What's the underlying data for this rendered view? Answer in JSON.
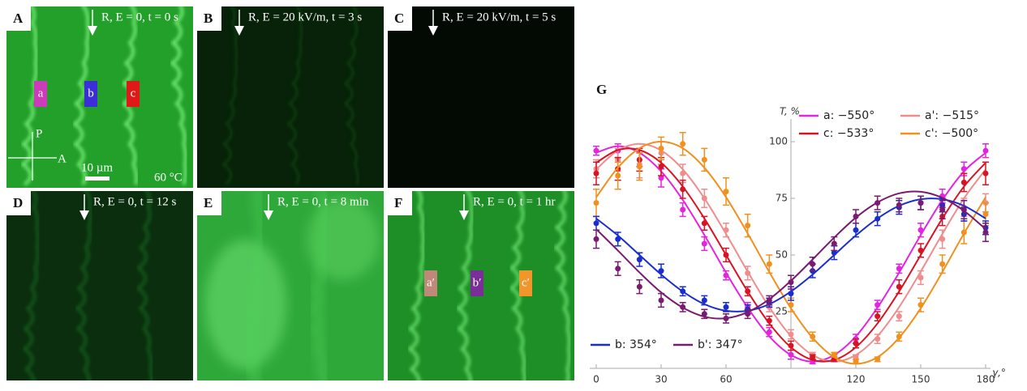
{
  "panels": [
    {
      "label": "A",
      "caption": "R, E = 0, t = 0 s",
      "markers": [
        {
          "text": "a",
          "color": "#cc3bb8"
        },
        {
          "text": "b",
          "color": "#3a2ed8"
        },
        {
          "text": "c",
          "color": "#e01818"
        }
      ],
      "polarizer": "P",
      "analyzer": "A",
      "scale": "10 µm",
      "temperature": "60 °C"
    },
    {
      "label": "B",
      "caption": "R, E = 20 kV/m, t = 3 s",
      "markers": []
    },
    {
      "label": "C",
      "caption": "R, E = 20 kV/m, t = 5 s",
      "markers": []
    },
    {
      "label": "D",
      "caption": "R, E = 0, t = 12 s",
      "markers": []
    },
    {
      "label": "E",
      "caption": "R, E = 0, t = 8 min",
      "markers": []
    },
    {
      "label": "F",
      "caption": "R, E = 0, t = 1 hr",
      "markers": [
        {
          "text": "a′",
          "color": "#c08878"
        },
        {
          "text": "b′",
          "color": "#7a2e98"
        },
        {
          "text": "c′",
          "color": "#f0962a"
        }
      ]
    }
  ],
  "chart_data": {
    "type": "line",
    "panel_label": "G",
    "ylabel": "T, %",
    "xlabel": "γ,°",
    "x": [
      0,
      10,
      20,
      30,
      40,
      50,
      60,
      70,
      80,
      90,
      100,
      110,
      120,
      130,
      140,
      150,
      160,
      170,
      180
    ],
    "xlim": [
      0,
      180
    ],
    "ylim": [
      0,
      110
    ],
    "xticks": [
      0,
      30,
      60,
      120,
      150,
      180
    ],
    "yticks": [
      25,
      50,
      75,
      100
    ],
    "series": [
      {
        "name": "a: −550°",
        "color": "#e424e0",
        "values": [
          96,
          96,
          92,
          84,
          70,
          55,
          41,
          27,
          16,
          6,
          3,
          5,
          13,
          28,
          44,
          61,
          76,
          88,
          96
        ],
        "errors": [
          2,
          3,
          3,
          4,
          3,
          3,
          2,
          2,
          2,
          2,
          1,
          1,
          2,
          2,
          2,
          3,
          3,
          3,
          3
        ],
        "fit": [
          95.1,
          98,
          95.1,
          86.9,
          74.3,
          58.8,
          42.2,
          26.8,
          14.1,
          5.9,
          3,
          5.9,
          14.1,
          26.8,
          42.2,
          58.8,
          74.3,
          86.9,
          95.1
        ]
      },
      {
        "name": "a': −515°",
        "color": "#f08c8c",
        "values": [
          88,
          92,
          90,
          95,
          86,
          75,
          61,
          42,
          27,
          15,
          6,
          4,
          5,
          13,
          23,
          40,
          57,
          71,
          73
        ],
        "errors": [
          4,
          5,
          6,
          5,
          4,
          4,
          3,
          3,
          2,
          2,
          1,
          1,
          1,
          2,
          2,
          3,
          4,
          4,
          4
        ],
        "fit": [
          87.8,
          96.1,
          99,
          96.1,
          87.8,
          75,
          59.3,
          42.7,
          27,
          14.2,
          5.9,
          3,
          5.9,
          14.2,
          27,
          42.7,
          59.3,
          75,
          87.8
        ]
      },
      {
        "name": "c: −533°",
        "color": "#d81424",
        "values": [
          86,
          88,
          92,
          89,
          79,
          64,
          50,
          34,
          21,
          10,
          5,
          4,
          11,
          23,
          36,
          52,
          67,
          82,
          86
        ],
        "errors": [
          5,
          5,
          5,
          4,
          4,
          3,
          3,
          2,
          2,
          2,
          1,
          1,
          2,
          2,
          3,
          3,
          4,
          4,
          5
        ],
        "fit": [
          90.7,
          96.3,
          96.3,
          90.7,
          80.2,
          66.1,
          50,
          33.9,
          19.8,
          9.3,
          3.7,
          3.7,
          9.3,
          19.8,
          33.9,
          50,
          66.1,
          80.2,
          90.7
        ]
      },
      {
        "name": "c': −500°",
        "color": "#f0901e",
        "values": [
          73,
          85,
          89,
          97,
          99,
          92,
          78,
          63,
          46,
          28,
          14,
          6,
          3,
          4,
          14,
          28,
          46,
          60,
          68
        ],
        "errors": [
          6,
          6,
          6,
          5,
          5,
          5,
          6,
          5,
          4,
          3,
          2,
          1,
          1,
          1,
          2,
          3,
          4,
          5,
          5
        ],
        "fit": [
          75.5,
          88.5,
          97.1,
          100,
          97.1,
          88.5,
          75.5,
          59.5,
          42.5,
          26.5,
          13.5,
          4.9,
          2,
          4.9,
          13.5,
          26.5,
          42.5,
          59.5,
          75.5
        ]
      },
      {
        "name": "b: 354°",
        "color": "#1a2ed0",
        "values": [
          64,
          57,
          48,
          43,
          34,
          30,
          27,
          26,
          29,
          33,
          43,
          51,
          61,
          66,
          71,
          73,
          72,
          68,
          62
        ],
        "errors": [
          3,
          3,
          3,
          3,
          2,
          2,
          2,
          2,
          2,
          3,
          3,
          3,
          3,
          3,
          3,
          3,
          3,
          3,
          3
        ],
        "fit": [
          66.1,
          58.6,
          50,
          41.4,
          33.9,
          28.3,
          25.4,
          25.4,
          28.3,
          33.9,
          41.4,
          50,
          58.6,
          66.1,
          71.7,
          74.6,
          74.6,
          71.7,
          66.1
        ]
      },
      {
        "name": "b': 347°",
        "color": "#7a1a70",
        "values": [
          57,
          44,
          36,
          30,
          27,
          24,
          22,
          24,
          30,
          38,
          46,
          55,
          67,
          73,
          72,
          73,
          70,
          70,
          60
        ],
        "errors": [
          4,
          3,
          3,
          3,
          2,
          2,
          2,
          2,
          2,
          3,
          3,
          3,
          3,
          3,
          3,
          3,
          4,
          4,
          4
        ],
        "fit": [
          61.4,
          52,
          42.3,
          33.5,
          26.8,
          22.8,
          22.1,
          24.8,
          30.5,
          38.6,
          48,
          57.7,
          66.5,
          73.2,
          77.2,
          77.9,
          75.2,
          69.5,
          61.4
        ]
      }
    ]
  }
}
